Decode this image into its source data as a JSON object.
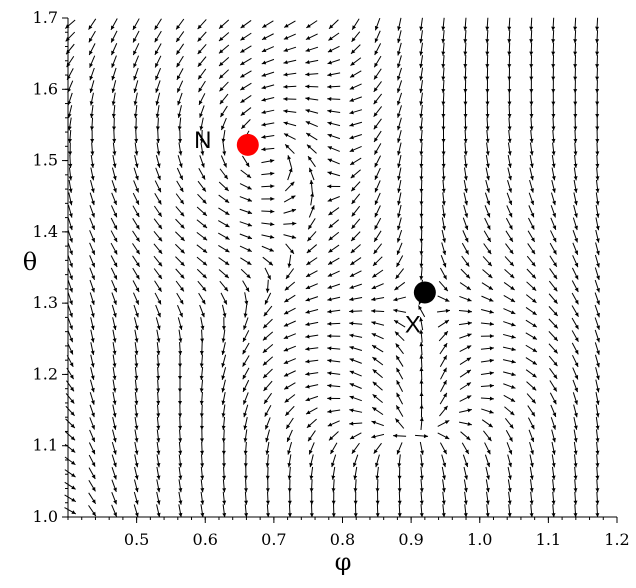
{
  "chart_data": {
    "type": "vector_field",
    "xlabel": "φ",
    "ylabel": "θ",
    "xlim": [
      0.4,
      1.2
    ],
    "ylim": [
      1.0,
      1.7
    ],
    "x_ticks": [
      {
        "v": 0.5,
        "label": "0.5"
      },
      {
        "v": 0.6,
        "label": "0.6"
      },
      {
        "v": 0.7,
        "label": "0.7"
      },
      {
        "v": 0.8,
        "label": "0.8"
      },
      {
        "v": 0.9,
        "label": "0.9"
      },
      {
        "v": 1.0,
        "label": "1.0"
      },
      {
        "v": 1.1,
        "label": "1.1"
      },
      {
        "v": 1.2,
        "label": "1.2"
      }
    ],
    "y_ticks": [
      {
        "v": 1.0,
        "label": "1.0"
      },
      {
        "v": 1.1,
        "label": "1.1"
      },
      {
        "v": 1.2,
        "label": "1.2"
      },
      {
        "v": 1.3,
        "label": "1.3"
      },
      {
        "v": 1.4,
        "label": "1.4"
      },
      {
        "v": 1.5,
        "label": "1.5"
      },
      {
        "v": 1.6,
        "label": "1.6"
      },
      {
        "v": 1.7,
        "label": "1.7"
      }
    ],
    "points": [
      {
        "label": "N",
        "x": 0.662,
        "y": 1.522,
        "color": "#ff0000"
      },
      {
        "label": "X",
        "x": 0.92,
        "y": 1.315,
        "color": "#000000"
      }
    ],
    "grid_x_count": 25,
    "grid_y_count": 40,
    "arrow_color": "#000000"
  }
}
